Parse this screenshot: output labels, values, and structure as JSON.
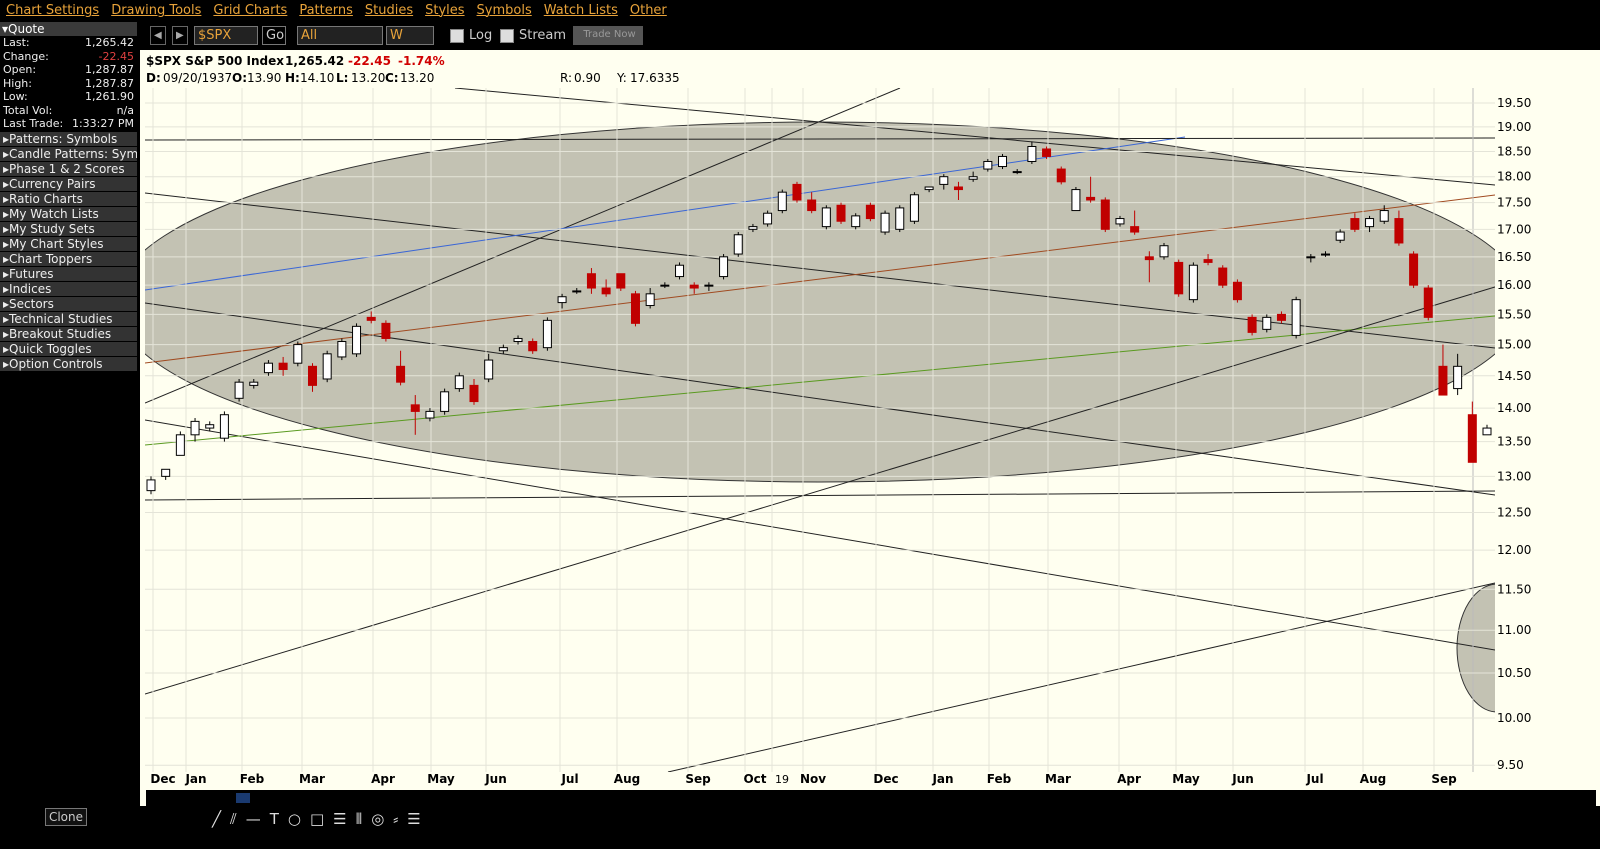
{
  "menu": [
    "Chart Settings",
    "Drawing Tools",
    "Grid Charts",
    "Patterns",
    "Studies",
    "Styles",
    "Symbols",
    "Watch Lists",
    "Other"
  ],
  "quote": {
    "title": "Quote",
    "rows": [
      [
        "Last:",
        "1,265.42"
      ],
      [
        "Change:",
        "-22.45"
      ],
      [
        "Open:",
        "1,287.87"
      ],
      [
        "High:",
        "1,287.87"
      ],
      [
        "Low:",
        "1,261.90"
      ],
      [
        "Total Vol:",
        "n/a"
      ],
      [
        "Last Trade:",
        "1:33:27 PM"
      ]
    ]
  },
  "sidebar": [
    "Patterns: Symbols",
    "Candle Patterns: Symb",
    "Phase 1 & 2 Scores",
    "Currency Pairs",
    "Ratio Charts",
    "My Watch Lists",
    "My Study Sets",
    "My Chart Styles",
    "Chart Toppers",
    "Futures",
    "Indices",
    "Sectors",
    "Technical Studies",
    "Breakout Studies",
    "Quick Toggles",
    "Option Controls"
  ],
  "clone": "Clone",
  "toolbar": {
    "symbol": "$SPX",
    "go": "Go",
    "range": "All",
    "period": "W",
    "log": "Log",
    "stream": "Stream",
    "trade": "Trade Now"
  },
  "header": {
    "name": "$SPX S&P 500 Index",
    "last": "1,265.42",
    "change": "-22.45",
    "pct": "-1.74%",
    "ohlc": [
      [
        "D:",
        "09/20/1937"
      ],
      [
        "O:",
        "13.90"
      ],
      [
        "H:",
        "14.10"
      ],
      [
        "L:",
        "13.20"
      ],
      [
        "C:",
        "13.20"
      ]
    ],
    "r": [
      "R:",
      "0.90"
    ],
    "y": [
      "Y:",
      "17.6335"
    ]
  },
  "chart_data": {
    "type": "candlestick",
    "log": true,
    "ylim": [
      9.43,
      19.82
    ],
    "yticks": [
      {
        "value": 19.5,
        "label": "19.50"
      },
      {
        "value": 19,
        "label": "19.00"
      },
      {
        "value": 18.5,
        "label": "18.50"
      },
      {
        "value": 18,
        "label": "18.00"
      },
      {
        "value": 17.5,
        "label": "17.50"
      },
      {
        "value": 17,
        "label": "17.00"
      },
      {
        "value": 16.5,
        "label": "16.50"
      },
      {
        "value": 16,
        "label": "16.00"
      },
      {
        "value": 15.5,
        "label": "15.50"
      },
      {
        "value": 15,
        "label": "15.00"
      },
      {
        "value": 14.5,
        "label": "14.50"
      },
      {
        "value": 14,
        "label": "14.00"
      },
      {
        "value": 13.5,
        "label": "13.50"
      },
      {
        "value": 13,
        "label": "13.00"
      },
      {
        "value": 12.5,
        "label": "12.50"
      },
      {
        "value": 12,
        "label": "12.00"
      },
      {
        "value": 11.5,
        "label": "11.50"
      },
      {
        "value": 11,
        "label": "11.00"
      },
      {
        "value": 10.5,
        "label": "10.50"
      },
      {
        "value": 10,
        "label": "10.00"
      },
      {
        "value": 9.5,
        "label": "9.50"
      }
    ],
    "months": [
      "Dec",
      "Jan",
      "Feb",
      "Mar",
      "Apr",
      "May",
      "Jun",
      "Jul",
      "Aug",
      "Sep",
      "Oct",
      "19",
      "Nov",
      "Dec",
      "Jan",
      "Feb",
      "Mar",
      "Apr",
      "May",
      "Jun",
      "Jul",
      "Aug",
      "Sep"
    ],
    "candles": [
      [
        12.8,
        13.0,
        12.75,
        12.95
      ],
      [
        13.0,
        13.1,
        12.95,
        13.1
      ],
      [
        13.3,
        13.65,
        13.3,
        13.6
      ],
      [
        13.6,
        13.85,
        13.5,
        13.8
      ],
      [
        13.7,
        13.8,
        13.65,
        13.75
      ],
      [
        13.55,
        13.95,
        13.5,
        13.9
      ],
      [
        14.15,
        14.45,
        14.1,
        14.4
      ],
      [
        14.35,
        14.45,
        14.3,
        14.4
      ],
      [
        14.55,
        14.75,
        14.5,
        14.7
      ],
      [
        14.7,
        14.8,
        14.5,
        14.6
      ],
      [
        14.7,
        15.05,
        14.65,
        15.0
      ],
      [
        14.65,
        14.7,
        14.25,
        14.35
      ],
      [
        14.45,
        14.9,
        14.4,
        14.85
      ],
      [
        14.8,
        15.1,
        14.75,
        15.05
      ],
      [
        14.85,
        15.35,
        14.8,
        15.3
      ],
      [
        15.45,
        15.55,
        15.35,
        15.4
      ],
      [
        15.35,
        15.4,
        15.05,
        15.1
      ],
      [
        14.65,
        14.9,
        14.35,
        14.4
      ],
      [
        14.05,
        14.2,
        13.6,
        13.95
      ],
      [
        13.85,
        14.0,
        13.8,
        13.95
      ],
      [
        13.95,
        14.3,
        13.9,
        14.25
      ],
      [
        14.3,
        14.55,
        14.25,
        14.5
      ],
      [
        14.35,
        14.45,
        14.05,
        14.1
      ],
      [
        14.45,
        14.85,
        14.4,
        14.75
      ],
      [
        14.9,
        15.0,
        14.85,
        14.95
      ],
      [
        15.05,
        15.15,
        15.0,
        15.1
      ],
      [
        15.05,
        15.1,
        14.85,
        14.9
      ],
      [
        14.95,
        15.45,
        14.9,
        15.4
      ],
      [
        15.7,
        15.85,
        15.6,
        15.8
      ],
      [
        15.9,
        15.95,
        15.85,
        15.9
      ],
      [
        16.2,
        16.3,
        15.85,
        15.95
      ],
      [
        15.95,
        16.1,
        15.8,
        15.85
      ],
      [
        16.2,
        16.2,
        15.9,
        15.95
      ],
      [
        15.85,
        15.9,
        15.3,
        15.35
      ],
      [
        15.65,
        15.95,
        15.6,
        15.85
      ],
      [
        16.0,
        16.05,
        15.95,
        16.0
      ],
      [
        16.15,
        16.4,
        16.1,
        16.35
      ],
      [
        16.0,
        16.05,
        15.85,
        15.95
      ],
      [
        16.0,
        16.05,
        15.9,
        16.0
      ],
      [
        16.15,
        16.55,
        16.1,
        16.5
      ],
      [
        16.55,
        16.95,
        16.5,
        16.9
      ],
      [
        17.0,
        17.1,
        16.95,
        17.05
      ],
      [
        17.1,
        17.35,
        17.05,
        17.3
      ],
      [
        17.35,
        17.75,
        17.3,
        17.7
      ],
      [
        17.85,
        17.9,
        17.5,
        17.55
      ],
      [
        17.55,
        17.7,
        17.3,
        17.35
      ],
      [
        17.05,
        17.45,
        17.0,
        17.4
      ],
      [
        17.45,
        17.5,
        17.1,
        17.15
      ],
      [
        17.05,
        17.3,
        17.0,
        17.25
      ],
      [
        17.45,
        17.5,
        17.15,
        17.2
      ],
      [
        16.95,
        17.35,
        16.9,
        17.3
      ],
      [
        17.0,
        17.45,
        16.95,
        17.4
      ],
      [
        17.15,
        17.7,
        17.1,
        17.65
      ],
      [
        17.75,
        17.8,
        17.7,
        17.8
      ],
      [
        17.85,
        18.05,
        17.75,
        18.0
      ],
      [
        17.8,
        17.9,
        17.55,
        17.75
      ],
      [
        17.95,
        18.1,
        17.9,
        18.0
      ],
      [
        18.15,
        18.35,
        18.1,
        18.3
      ],
      [
        18.2,
        18.45,
        18.15,
        18.4
      ],
      [
        18.1,
        18.15,
        18.05,
        18.1
      ],
      [
        18.3,
        18.7,
        18.25,
        18.6
      ],
      [
        18.55,
        18.6,
        18.35,
        18.4
      ],
      [
        18.15,
        18.2,
        17.85,
        17.9
      ],
      [
        17.35,
        17.8,
        17.35,
        17.75
      ],
      [
        17.6,
        18.0,
        17.5,
        17.55
      ],
      [
        17.55,
        17.6,
        16.95,
        17.0
      ],
      [
        17.1,
        17.25,
        17.05,
        17.2
      ],
      [
        17.05,
        17.35,
        16.9,
        16.95
      ],
      [
        16.5,
        16.6,
        16.05,
        16.45
      ],
      [
        16.5,
        16.75,
        16.45,
        16.7
      ],
      [
        16.4,
        16.45,
        15.8,
        15.85
      ],
      [
        15.75,
        16.4,
        15.7,
        16.35
      ],
      [
        16.45,
        16.55,
        16.35,
        16.4
      ],
      [
        16.3,
        16.35,
        15.95,
        16.0
      ],
      [
        16.05,
        16.1,
        15.7,
        15.75
      ],
      [
        15.45,
        15.5,
        15.15,
        15.2
      ],
      [
        15.25,
        15.5,
        15.2,
        15.45
      ],
      [
        15.5,
        15.55,
        15.35,
        15.4
      ],
      [
        15.15,
        15.8,
        15.1,
        15.75
      ],
      [
        16.5,
        16.55,
        16.4,
        16.5
      ],
      [
        16.55,
        16.6,
        16.5,
        16.55
      ],
      [
        16.8,
        17.0,
        16.75,
        16.95
      ],
      [
        17.2,
        17.3,
        16.95,
        17.0
      ],
      [
        17.05,
        17.25,
        16.95,
        17.2
      ],
      [
        17.15,
        17.45,
        17.1,
        17.35
      ],
      [
        17.2,
        17.35,
        16.7,
        16.75
      ],
      [
        16.55,
        16.6,
        15.95,
        16.0
      ],
      [
        15.95,
        16.0,
        15.4,
        15.45
      ],
      [
        14.65,
        15.0,
        14.2,
        14.2
      ],
      [
        14.3,
        14.85,
        14.2,
        14.65
      ],
      [
        13.9,
        14.1,
        13.2,
        13.2
      ],
      [
        13.6,
        13.75,
        13.6,
        13.7
      ]
    ],
    "up_color": "#ffffff",
    "down_color": "#c00000"
  }
}
